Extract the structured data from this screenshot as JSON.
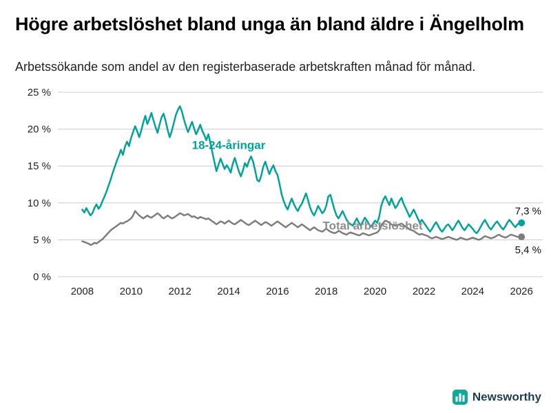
{
  "header": {
    "title": "Högre arbetslöshet bland unga än bland äldre i Ängelholm",
    "subtitle": "Arbetssökande som andel av den registerbaserade arbetskraften månad för månad."
  },
  "footer": {
    "brand": "Newsworthy",
    "brand_color": "#12a798",
    "brand_text_color": "#1d3d4f"
  },
  "chart_data": {
    "type": "line",
    "title": "Högre arbetslöshet bland unga än bland äldre i Ängelholm",
    "subtitle": "Arbetssökande som andel av den registerbaserade arbetskraften månad för månad.",
    "grid": "horizontal",
    "legend": "inline-labels",
    "xlim": [
      2007.0,
      2026.7
    ],
    "ylim": [
      0,
      25
    ],
    "x_start": 2008,
    "x_step_months": 1,
    "xticks": [
      2008,
      2010,
      2012,
      2014,
      2016,
      2018,
      2020,
      2022,
      2024,
      2026
    ],
    "xtick_labels": [
      "2008",
      "2010",
      "2012",
      "2014",
      "2016",
      "2018",
      "2020",
      "2022",
      "2024",
      "2026"
    ],
    "yticks": [
      0,
      5,
      10,
      15,
      20,
      25
    ],
    "ytick_labels": [
      "0 %",
      "5 %",
      "10 %",
      "15 %",
      "20 %",
      "25 %"
    ],
    "gridline_color": "#cccccc",
    "tick_label_color": "#222222",
    "series": [
      {
        "name": "18-24-åringar",
        "color": "#00a29b",
        "label_color": "#00a29b",
        "end_label": "7,3 %",
        "end_label_dy": -12,
        "label_pos": {
          "x": 2014.0,
          "y": 17.3
        },
        "values": [
          9.1,
          8.7,
          9.3,
          8.8,
          8.3,
          8.6,
          9.3,
          9.8,
          9.2,
          9.6,
          10.3,
          10.9,
          11.6,
          12.4,
          13.2,
          14.1,
          14.9,
          15.7,
          16.4,
          17.2,
          16.5,
          17.6,
          18.3,
          17.7,
          18.8,
          19.6,
          20.4,
          19.7,
          18.9,
          19.8,
          20.9,
          21.8,
          20.7,
          21.4,
          22.2,
          21.2,
          20.3,
          19.5,
          20.6,
          21.6,
          22.1,
          21.1,
          19.9,
          18.9,
          19.7,
          20.8,
          21.9,
          22.6,
          23.1,
          22.4,
          21.3,
          20.4,
          19.6,
          20.3,
          21.0,
          20.1,
          19.3,
          19.9,
          20.6,
          19.8,
          19.2,
          18.5,
          19.3,
          18.2,
          16.8,
          15.5,
          14.3,
          15.2,
          16.0,
          15.3,
          14.6,
          15.1,
          14.7,
          14.1,
          15.3,
          16.1,
          15.2,
          14.3,
          13.6,
          14.4,
          15.4,
          14.9,
          15.7,
          16.3,
          15.6,
          14.4,
          13.1,
          12.9,
          13.7,
          14.9,
          15.6,
          14.7,
          13.9,
          14.6,
          15.1,
          14.3,
          13.8,
          12.6,
          11.2,
          10.3,
          9.6,
          9.1,
          9.9,
          10.6,
          9.9,
          9.3,
          8.9,
          9.5,
          9.9,
          10.6,
          11.3,
          10.4,
          9.4,
          8.7,
          8.3,
          8.9,
          9.6,
          9.1,
          8.6,
          8.9,
          9.6,
          10.9,
          11.1,
          10.1,
          9.1,
          8.3,
          7.9,
          8.4,
          8.9,
          8.3,
          7.7,
          7.3,
          7.1,
          6.9,
          7.4,
          7.9,
          7.3,
          6.9,
          7.5,
          8.0,
          7.6,
          7.1,
          6.8,
          7.2,
          7.6,
          7.3,
          8.1,
          9.6,
          10.4,
          10.9,
          10.3,
          9.7,
          10.6,
          9.9,
          9.3,
          9.7,
          10.3,
          10.7,
          9.9,
          9.3,
          8.7,
          8.1,
          8.6,
          9.1,
          8.5,
          7.9,
          7.3,
          7.7,
          7.3,
          6.9,
          6.5,
          6.1,
          6.5,
          7.0,
          7.4,
          6.9,
          6.4,
          6.1,
          6.5,
          6.9,
          7.1,
          6.7,
          6.3,
          6.7,
          7.2,
          7.6,
          7.1,
          6.6,
          6.3,
          6.7,
          7.1,
          6.8,
          6.5,
          6.1,
          5.9,
          6.3,
          6.8,
          7.3,
          7.7,
          7.2,
          6.7,
          6.4,
          6.8,
          7.2,
          7.5,
          7.1,
          6.7,
          6.4,
          6.8,
          7.3,
          7.7,
          7.4,
          7.0,
          6.7,
          7.1,
          7.3,
          7.3
        ]
      },
      {
        "name": "Total arbetslöshet",
        "color": "#7d7d7d",
        "label_color": "#8c8c8c",
        "end_label": "5,4 %",
        "end_label_dy": 24,
        "label_pos": {
          "x": 2019.9,
          "y": 6.4
        },
        "values": [
          4.8,
          4.7,
          4.6,
          4.5,
          4.3,
          4.4,
          4.6,
          4.5,
          4.7,
          4.9,
          5.1,
          5.4,
          5.7,
          6.0,
          6.3,
          6.5,
          6.7,
          6.9,
          7.1,
          7.3,
          7.2,
          7.4,
          7.5,
          7.7,
          7.9,
          8.3,
          8.9,
          8.6,
          8.3,
          8.1,
          7.9,
          8.1,
          8.3,
          8.1,
          8.0,
          8.2,
          8.4,
          8.6,
          8.4,
          8.1,
          7.9,
          8.1,
          8.3,
          8.1,
          7.9,
          8.0,
          8.2,
          8.4,
          8.6,
          8.5,
          8.3,
          8.4,
          8.5,
          8.3,
          8.1,
          8.2,
          8.0,
          7.9,
          8.1,
          8.0,
          7.9,
          7.8,
          7.9,
          7.7,
          7.5,
          7.3,
          7.1,
          7.3,
          7.5,
          7.4,
          7.2,
          7.4,
          7.6,
          7.4,
          7.2,
          7.1,
          7.3,
          7.5,
          7.7,
          7.5,
          7.3,
          7.1,
          7.0,
          7.2,
          7.4,
          7.6,
          7.4,
          7.2,
          7.0,
          7.2,
          7.4,
          7.3,
          7.1,
          6.9,
          7.1,
          7.3,
          7.5,
          7.3,
          7.1,
          6.9,
          6.7,
          6.9,
          7.1,
          7.3,
          7.1,
          6.9,
          6.7,
          6.9,
          7.1,
          6.9,
          6.7,
          6.5,
          6.3,
          6.5,
          6.7,
          6.5,
          6.3,
          6.2,
          6.1,
          6.3,
          6.5,
          6.3,
          6.1,
          6.0,
          5.9,
          6.0,
          6.2,
          6.1,
          5.9,
          5.8,
          5.7,
          5.9,
          6.0,
          5.9,
          5.8,
          5.7,
          5.6,
          5.7,
          5.9,
          5.8,
          5.7,
          5.6,
          5.7,
          5.8,
          5.9,
          6.0,
          6.3,
          6.9,
          7.3,
          7.6,
          7.5,
          7.3,
          7.1,
          7.0,
          6.9,
          7.0,
          7.1,
          7.2,
          7.0,
          6.8,
          6.6,
          6.4,
          6.3,
          6.2,
          6.0,
          5.8,
          5.7,
          5.8,
          5.7,
          5.6,
          5.5,
          5.3,
          5.2,
          5.3,
          5.4,
          5.3,
          5.2,
          5.1,
          5.2,
          5.3,
          5.4,
          5.3,
          5.2,
          5.1,
          5.0,
          5.1,
          5.3,
          5.2,
          5.1,
          5.0,
          5.1,
          5.2,
          5.3,
          5.2,
          5.1,
          5.0,
          5.1,
          5.3,
          5.5,
          5.4,
          5.3,
          5.2,
          5.3,
          5.4,
          5.6,
          5.7,
          5.5,
          5.4,
          5.3,
          5.4,
          5.6,
          5.7,
          5.6,
          5.5,
          5.4,
          5.4,
          5.4
        ]
      }
    ]
  }
}
